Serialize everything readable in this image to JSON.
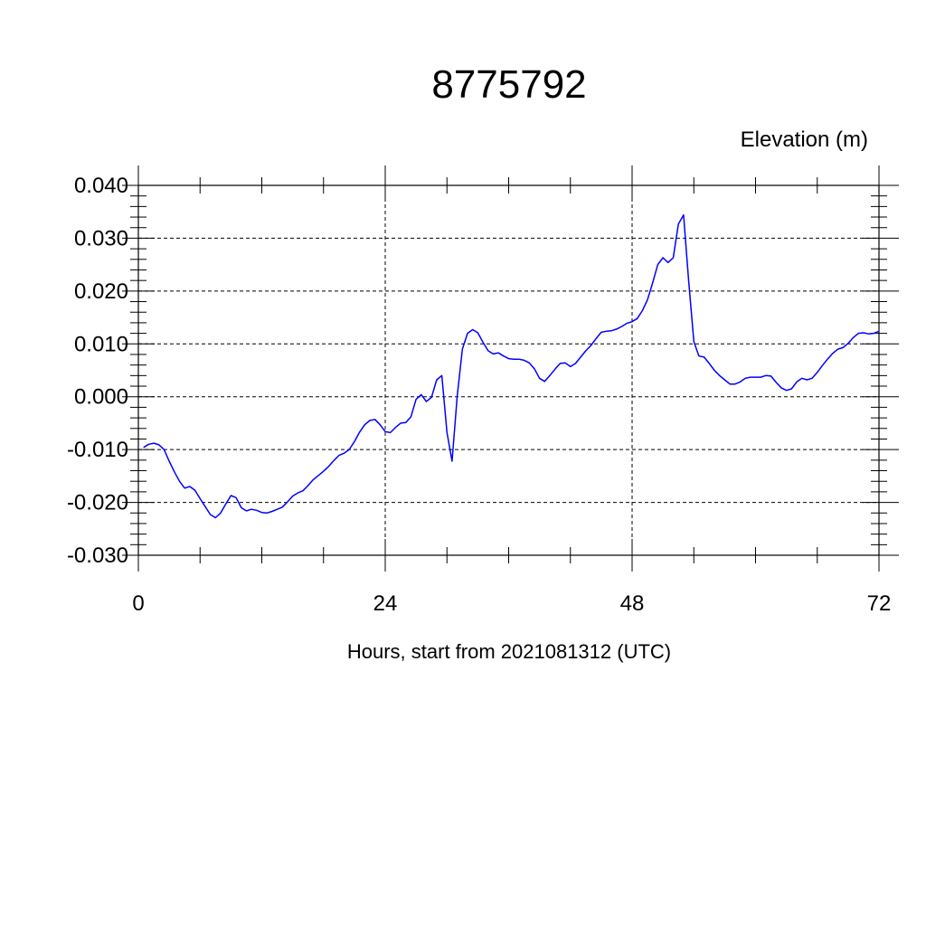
{
  "chart_data": {
    "type": "line",
    "title": "8775792",
    "ylabel": "Elevation (m)",
    "xlabel": "Hours, start from 2021081312 (UTC)",
    "xlim": [
      0,
      72
    ],
    "ylim": [
      -0.03,
      0.04
    ],
    "x_ticks": [
      0,
      24,
      48,
      72
    ],
    "x_tick_labels": [
      "0",
      "24",
      "48",
      "72"
    ],
    "y_ticks": [
      -0.03,
      -0.02,
      -0.01,
      0.0,
      0.01,
      0.02,
      0.03,
      0.04
    ],
    "y_tick_labels": [
      "-0.030",
      "-0.020",
      "-0.010",
      "0.000",
      "0.010",
      "0.020",
      "0.030",
      "0.040"
    ],
    "grid": true,
    "line_color": "#0000ff",
    "series": [
      {
        "x": [
          0.5,
          1.0,
          1.5,
          2.0,
          2.5,
          3.0,
          3.5,
          4.0,
          4.5,
          5.0,
          5.5,
          6.0,
          6.5,
          7.0,
          7.5,
          8.0,
          8.5,
          9.0,
          9.5,
          10.0,
          10.5,
          11.0,
          11.5,
          12.0,
          12.5,
          13.0,
          13.5,
          14.0,
          14.5,
          15.0,
          15.5,
          16.0,
          16.5,
          17.0,
          17.5,
          18.0,
          18.5,
          19.0,
          19.5,
          20.0,
          20.5,
          21.0,
          21.5,
          22.0,
          22.5,
          23.0,
          23.5,
          24.0,
          24.5,
          25.0,
          25.5,
          26.0,
          26.5,
          27.0,
          27.5,
          28.0,
          28.5,
          29.0,
          29.5,
          30.0,
          30.5,
          31.0,
          31.5,
          32.0,
          32.5,
          33.0,
          33.5,
          34.0,
          34.5,
          35.0,
          35.5,
          36.0,
          36.5,
          37.0,
          37.5,
          38.0,
          38.5,
          39.0,
          39.5,
          40.0,
          40.5,
          41.0,
          41.5,
          42.0,
          42.5,
          43.0,
          43.5,
          44.0,
          44.5,
          45.0,
          45.5,
          46.0,
          46.5,
          47.0,
          47.5,
          48.0,
          48.5,
          49.0,
          49.5,
          50.0,
          50.5,
          51.0,
          51.5,
          52.0,
          52.5,
          53.0,
          53.5,
          54.0,
          54.5,
          55.0,
          55.5,
          56.0,
          56.5,
          57.0,
          57.5,
          58.0,
          58.5,
          59.0,
          59.5,
          60.0,
          60.5,
          61.0,
          61.5,
          62.0,
          62.5,
          63.0,
          63.5,
          64.0,
          64.5,
          65.0,
          65.5,
          66.0,
          66.5,
          67.0,
          67.5,
          68.0,
          68.5,
          69.0,
          69.5,
          70.0,
          70.5,
          71.0,
          71.5,
          72.0
        ],
        "y": [
          -0.0096,
          -0.009,
          -0.0088,
          -0.0091,
          -0.01,
          -0.0122,
          -0.0142,
          -0.016,
          -0.0173,
          -0.017,
          -0.0177,
          -0.0193,
          -0.0208,
          -0.0223,
          -0.0229,
          -0.022,
          -0.0203,
          -0.0187,
          -0.0191,
          -0.021,
          -0.0216,
          -0.0213,
          -0.0215,
          -0.0219,
          -0.022,
          -0.0217,
          -0.0213,
          -0.0209,
          -0.0199,
          -0.0188,
          -0.0182,
          -0.0178,
          -0.0168,
          -0.0157,
          -0.0149,
          -0.0141,
          -0.0132,
          -0.0121,
          -0.0111,
          -0.0107,
          -0.01,
          -0.0085,
          -0.0067,
          -0.0053,
          -0.0045,
          -0.0043,
          -0.0053,
          -0.0066,
          -0.0068,
          -0.0058,
          -0.005,
          -0.0049,
          -0.0038,
          -0.0005,
          0.0004,
          -0.0009,
          -0.0001,
          0.0032,
          0.004,
          -0.0068,
          -0.0122,
          0.0001,
          0.009,
          0.012,
          0.0127,
          0.0121,
          0.0103,
          0.0087,
          0.0081,
          0.0083,
          0.0077,
          0.0072,
          0.0071,
          0.0071,
          0.0069,
          0.0064,
          0.0053,
          0.0035,
          0.0029,
          0.004,
          0.0052,
          0.0063,
          0.0064,
          0.0057,
          0.0063,
          0.0075,
          0.0087,
          0.0097,
          0.011,
          0.0122,
          0.0124,
          0.0125,
          0.0128,
          0.0133,
          0.0139,
          0.0142,
          0.0148,
          0.0163,
          0.0184,
          0.0216,
          0.025,
          0.0263,
          0.0254,
          0.0263,
          0.0327,
          0.0344,
          0.0218,
          0.0104,
          0.0077,
          0.0075,
          0.0063,
          0.005,
          0.004,
          0.0032,
          0.0024,
          0.0024,
          0.0028,
          0.0035,
          0.0037,
          0.0037,
          0.0037,
          0.004,
          0.0039,
          0.0027,
          0.0017,
          0.0012,
          0.0015,
          0.0028,
          0.0035,
          0.0032,
          0.0035,
          0.0046,
          0.0059,
          0.0071,
          0.0082,
          0.009,
          0.0093,
          0.0101,
          0.0112,
          0.012,
          0.0121,
          0.0119,
          0.012,
          0.0124
        ]
      }
    ]
  }
}
